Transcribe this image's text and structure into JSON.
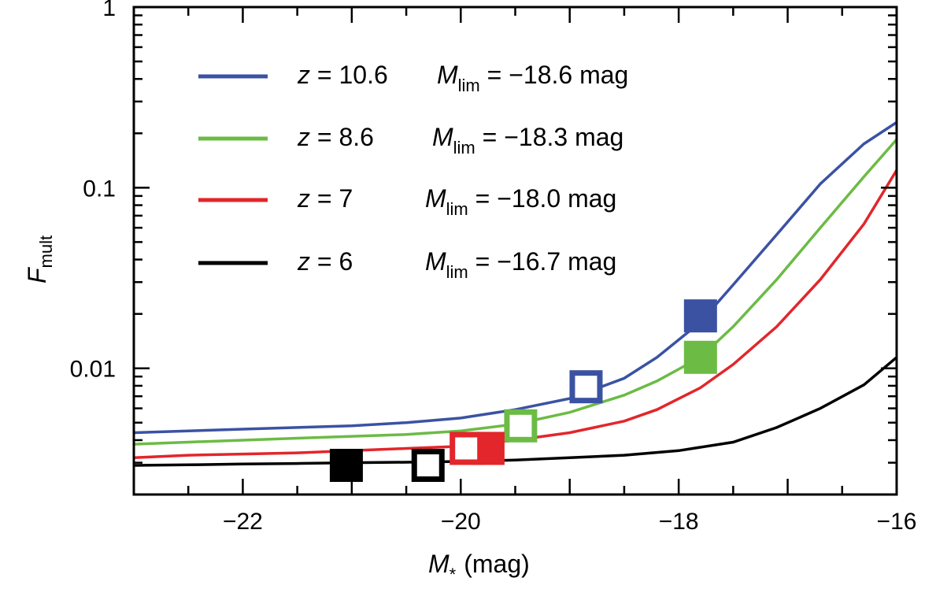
{
  "chart_data": {
    "type": "line",
    "xlabel": {
      "symbol": "M",
      "subscript": "*",
      "unit": "(mag)"
    },
    "ylabel": {
      "symbol": "F",
      "subscript": "mult"
    },
    "xlim": [
      -23,
      -16
    ],
    "ylim": [
      0.002,
      1.0
    ],
    "yscale": "log",
    "x_ticks": [
      {
        "value": -22,
        "label": "−22"
      },
      {
        "value": -20,
        "label": "−20"
      },
      {
        "value": -18,
        "label": "−18"
      },
      {
        "value": -16,
        "label": "−16"
      }
    ],
    "y_ticks": [
      {
        "value": 1,
        "label": "1"
      },
      {
        "value": 0.1,
        "label": "0.1"
      },
      {
        "value": 0.01,
        "label": "0.01"
      }
    ],
    "legend_position": "top-left",
    "series": [
      {
        "name": "z = 10.6",
        "legend": {
          "z_text": "z = 10.6",
          "mlim_symbol": "M",
          "mlim_sub": "lim",
          "mlim_value": "= −18.6 mag"
        },
        "color": "#3b52a3",
        "x": [
          -23,
          -22.5,
          -22,
          -21.5,
          -21,
          -20.5,
          -20,
          -19.5,
          -19,
          -18.5,
          -18.2,
          -17.8,
          -17.5,
          -17.1,
          -16.7,
          -16.3,
          -16
        ],
        "y": [
          0.0044,
          0.0045,
          0.0046,
          0.0047,
          0.0048,
          0.005,
          0.0053,
          0.0059,
          0.0068,
          0.0088,
          0.0115,
          0.018,
          0.029,
          0.055,
          0.105,
          0.175,
          0.23
        ],
        "markers": [
          {
            "x": -18.85,
            "y": 0.0079,
            "style": "open"
          },
          {
            "x": -17.8,
            "y": 0.0195,
            "style": "filled"
          }
        ]
      },
      {
        "name": "z = 8.6",
        "legend": {
          "z_text": "z = 8.6",
          "mlim_symbol": "M",
          "mlim_sub": "lim",
          "mlim_value": "= −18.3 mag"
        },
        "color": "#6cbb45",
        "x": [
          -23,
          -22.5,
          -22,
          -21.5,
          -21,
          -20.5,
          -20,
          -19.5,
          -19,
          -18.5,
          -18.2,
          -17.8,
          -17.5,
          -17.1,
          -16.7,
          -16.3,
          -16
        ],
        "y": [
          0.0038,
          0.0039,
          0.004,
          0.0041,
          0.0042,
          0.0043,
          0.0045,
          0.0049,
          0.0057,
          0.0071,
          0.0085,
          0.0115,
          0.017,
          0.031,
          0.06,
          0.115,
          0.185
        ],
        "markers": [
          {
            "x": -19.45,
            "y": 0.0048,
            "style": "open"
          },
          {
            "x": -17.8,
            "y": 0.0115,
            "style": "filled"
          }
        ]
      },
      {
        "name": "z = 7",
        "legend": {
          "z_text": "z = 7",
          "mlim_symbol": "M",
          "mlim_sub": "lim",
          "mlim_value": "= −18.0 mag"
        },
        "color": "#e2262b",
        "x": [
          -23,
          -22.5,
          -22,
          -21.5,
          -21,
          -20.5,
          -20,
          -19.5,
          -19,
          -18.5,
          -18.2,
          -17.8,
          -17.5,
          -17.1,
          -16.7,
          -16.3,
          -16
        ],
        "y": [
          0.0032,
          0.0033,
          0.00335,
          0.0034,
          0.0035,
          0.0036,
          0.0037,
          0.004,
          0.0044,
          0.0051,
          0.0059,
          0.0078,
          0.0105,
          0.017,
          0.031,
          0.063,
          0.125
        ],
        "markers": [
          {
            "x": -19.75,
            "y": 0.0036,
            "style": "filled"
          },
          {
            "x": -19.95,
            "y": 0.0036,
            "style": "open"
          }
        ]
      },
      {
        "name": "z = 6",
        "legend": {
          "z_text": "z = 6",
          "mlim_symbol": "M",
          "mlim_sub": "lim",
          "mlim_value": "= −16.7 mag"
        },
        "color": "#000000",
        "x": [
          -23,
          -22.5,
          -22,
          -21.5,
          -21,
          -20.5,
          -20,
          -19.5,
          -19,
          -18.5,
          -18,
          -17.5,
          -17.1,
          -16.7,
          -16.3,
          -16
        ],
        "y": [
          0.0029,
          0.00292,
          0.00295,
          0.00297,
          0.003,
          0.00302,
          0.00305,
          0.0031,
          0.0032,
          0.0033,
          0.0035,
          0.0039,
          0.0047,
          0.006,
          0.0081,
          0.0115
        ],
        "markers": [
          {
            "x": -21.05,
            "y": 0.0029,
            "style": "filled"
          },
          {
            "x": -20.3,
            "y": 0.0029,
            "style": "open"
          }
        ]
      }
    ]
  }
}
